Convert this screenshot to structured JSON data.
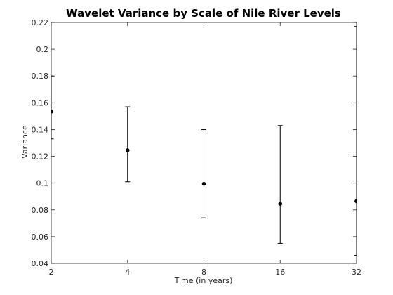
{
  "chart_data": {
    "type": "scatter",
    "title": "Wavelet Variance by Scale of Nile River Levels",
    "xlabel": "Time (in years)",
    "ylabel": "Variance",
    "x_scale": "log2",
    "x_ticks": [
      "2",
      "4",
      "8",
      "16",
      "32"
    ],
    "y_ticks": [
      "0.04",
      "0.06",
      "0.08",
      "0.1",
      "0.12",
      "0.14",
      "0.16",
      "0.18",
      "0.2",
      "0.22"
    ],
    "xlim": [
      2,
      32
    ],
    "ylim": [
      0.04,
      0.22
    ],
    "grid": false,
    "series": [
      {
        "points": [
          {
            "x": 2,
            "y": 0.1535,
            "lower": 0.133,
            "upper": 0.18
          },
          {
            "x": 4,
            "y": 0.1245,
            "lower": 0.101,
            "upper": 0.157
          },
          {
            "x": 8,
            "y": 0.0995,
            "lower": 0.074,
            "upper": 0.14
          },
          {
            "x": 16,
            "y": 0.0845,
            "lower": 0.055,
            "upper": 0.143
          },
          {
            "x": 32,
            "y": 0.0865,
            "lower": 0.046,
            "upper": 0.217
          }
        ],
        "color": "#000000"
      }
    ]
  }
}
